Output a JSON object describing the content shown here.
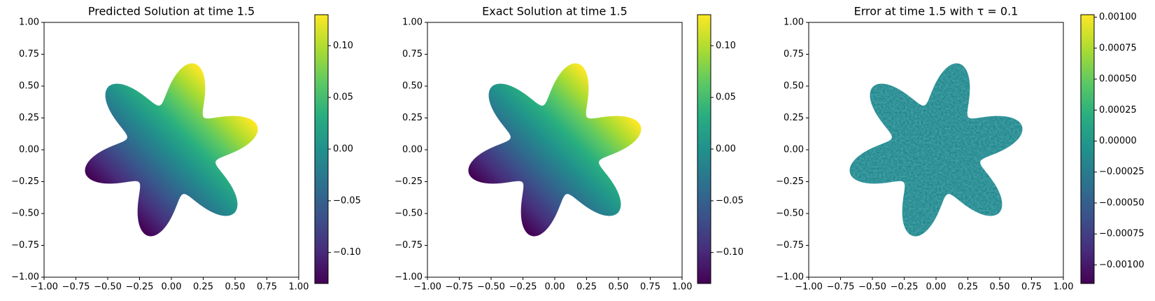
{
  "chart_data": [
    {
      "type": "heatmap",
      "title": "Predicted Solution at time 1.5",
      "xlim": [
        -1,
        1
      ],
      "ylim": [
        -1,
        1
      ],
      "xticks": [
        {
          "value": -1,
          "label": "−1.00"
        },
        {
          "value": -0.75,
          "label": "−0.75"
        },
        {
          "value": -0.5,
          "label": "−0.50"
        },
        {
          "value": -0.25,
          "label": "−0.25"
        },
        {
          "value": 0,
          "label": "0.00"
        },
        {
          "value": 0.25,
          "label": "0.25"
        },
        {
          "value": 0.5,
          "label": "0.50"
        },
        {
          "value": 0.75,
          "label": "0.75"
        },
        {
          "value": 1,
          "label": "1.00"
        }
      ],
      "yticks": [
        {
          "value": -1,
          "label": "−1.00"
        },
        {
          "value": -0.75,
          "label": "−0.75"
        },
        {
          "value": -0.5,
          "label": "−0.50"
        },
        {
          "value": -0.25,
          "label": "−0.25"
        },
        {
          "value": 0,
          "label": "0.00"
        },
        {
          "value": 0.25,
          "label": "0.25"
        },
        {
          "value": 0.5,
          "label": "0.50"
        },
        {
          "value": 0.75,
          "label": "0.75"
        },
        {
          "value": 1,
          "label": "1.00"
        }
      ],
      "colorbar": {
        "colormap": "viridis",
        "clim": [
          -0.13,
          0.13
        ],
        "ticks": [
          {
            "value": -0.1,
            "label": "−0.10"
          },
          {
            "value": -0.05,
            "label": "−0.05"
          },
          {
            "value": 0,
            "label": "0.00"
          },
          {
            "value": 0.05,
            "label": "0.05"
          },
          {
            "value": 0.1,
            "label": "0.10"
          }
        ]
      }
    },
    {
      "type": "heatmap",
      "title": "Exact Solution at time 1.5",
      "xlim": [
        -1,
        1
      ],
      "ylim": [
        -1,
        1
      ],
      "xticks": [
        {
          "value": -1,
          "label": "−1.00"
        },
        {
          "value": -0.75,
          "label": "−0.75"
        },
        {
          "value": -0.5,
          "label": "−0.50"
        },
        {
          "value": -0.25,
          "label": "−0.25"
        },
        {
          "value": 0,
          "label": "0.00"
        },
        {
          "value": 0.25,
          "label": "0.25"
        },
        {
          "value": 0.5,
          "label": "0.50"
        },
        {
          "value": 0.75,
          "label": "0.75"
        },
        {
          "value": 1,
          "label": "1.00"
        }
      ],
      "yticks": [
        {
          "value": -1,
          "label": "−1.00"
        },
        {
          "value": -0.75,
          "label": "−0.75"
        },
        {
          "value": -0.5,
          "label": "−0.50"
        },
        {
          "value": -0.25,
          "label": "−0.25"
        },
        {
          "value": 0,
          "label": "0.00"
        },
        {
          "value": 0.25,
          "label": "0.25"
        },
        {
          "value": 0.5,
          "label": "0.50"
        },
        {
          "value": 0.75,
          "label": "0.75"
        },
        {
          "value": 1,
          "label": "1.00"
        }
      ],
      "colorbar": {
        "colormap": "viridis",
        "clim": [
          -0.13,
          0.13
        ],
        "ticks": [
          {
            "value": -0.1,
            "label": "−0.10"
          },
          {
            "value": -0.05,
            "label": "−0.05"
          },
          {
            "value": 0,
            "label": "0.00"
          },
          {
            "value": 0.05,
            "label": "0.05"
          },
          {
            "value": 0.1,
            "label": "0.10"
          }
        ]
      }
    },
    {
      "type": "heatmap",
      "title": "Error at time 1.5 with τ = 0.1",
      "xlim": [
        -1,
        1
      ],
      "ylim": [
        -1,
        1
      ],
      "xticks": [
        {
          "value": -1,
          "label": "−1.00"
        },
        {
          "value": -0.75,
          "label": "−0.75"
        },
        {
          "value": -0.5,
          "label": "−0.50"
        },
        {
          "value": -0.25,
          "label": "−0.25"
        },
        {
          "value": 0,
          "label": "0.00"
        },
        {
          "value": 0.25,
          "label": "0.25"
        },
        {
          "value": 0.5,
          "label": "0.50"
        },
        {
          "value": 0.75,
          "label": "0.75"
        },
        {
          "value": 1,
          "label": "1.00"
        }
      ],
      "yticks": [
        {
          "value": -1,
          "label": "−1.00"
        },
        {
          "value": -0.75,
          "label": "−0.75"
        },
        {
          "value": -0.5,
          "label": "−0.50"
        },
        {
          "value": -0.25,
          "label": "−0.25"
        },
        {
          "value": 0,
          "label": "0.00"
        },
        {
          "value": 0.25,
          "label": "0.25"
        },
        {
          "value": 0.5,
          "label": "0.50"
        },
        {
          "value": 0.75,
          "label": "0.75"
        },
        {
          "value": 1,
          "label": "1.00"
        }
      ],
      "colorbar": {
        "colormap": "viridis",
        "clim": [
          -0.00115,
          0.00102
        ],
        "ticks": [
          {
            "value": -0.001,
            "label": "−0.00100"
          },
          {
            "value": -0.00075,
            "label": "−0.00075"
          },
          {
            "value": -0.0005,
            "label": "−0.00050"
          },
          {
            "value": -0.00025,
            "label": "−0.00025"
          },
          {
            "value": 0,
            "label": "0.00000"
          },
          {
            "value": 0.00025,
            "label": "0.00025"
          },
          {
            "value": 0.0005,
            "label": "0.00050"
          },
          {
            "value": 0.00075,
            "label": "0.00075"
          },
          {
            "value": 0.001,
            "label": "0.00100"
          }
        ]
      }
    }
  ]
}
